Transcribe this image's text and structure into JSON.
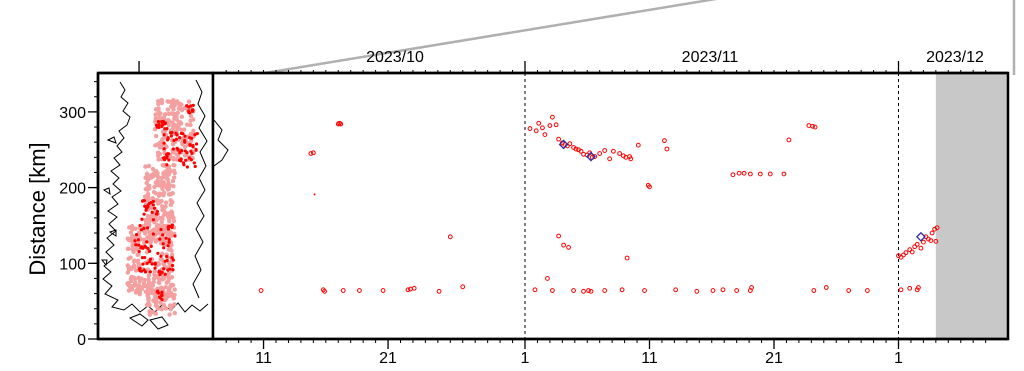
{
  "chart_data": {
    "type": "scatter",
    "title": "",
    "ylabel": "Distance [km]",
    "xlabel": "",
    "x_axis": {
      "type": "date",
      "range": [
        "2023-10-08",
        "2023-12-08"
      ],
      "month_labels": [
        {
          "label": "2023/10",
          "date": "2023-10-01"
        },
        {
          "label": "2023/11",
          "date": "2023-11-01"
        },
        {
          "label": "2023/12",
          "date": "2023-12-01"
        }
      ],
      "day_ticks": [
        {
          "label": "11",
          "date": "2023-10-11"
        },
        {
          "label": "21",
          "date": "2023-10-21"
        },
        {
          "label": "1",
          "date": "2023-11-01"
        },
        {
          "label": "11",
          "date": "2023-11-11"
        },
        {
          "label": "21",
          "date": "2023-11-21"
        },
        {
          "label": "1",
          "date": "2023-12-01"
        }
      ],
      "month_boundaries": [
        "2023-11-01",
        "2023-12-01"
      ]
    },
    "y_axis": {
      "range": [
        0,
        350
      ],
      "ticks": [
        {
          "label": "0",
          "value": 0
        },
        {
          "label": "100",
          "value": 100
        },
        {
          "label": "200",
          "value": 200
        },
        {
          "label": "300",
          "value": 300
        }
      ]
    },
    "no_data_shading": {
      "from": "2023-12-04",
      "to": "2023-12-08",
      "color": "#c8c8c8"
    },
    "colors": {
      "events": "#ff0000",
      "highlight": "#2a2aa8",
      "map_density": "#f4a0a0",
      "shade": "#c8c8c8"
    },
    "series": [
      {
        "marker": "small-open-circle",
        "points": [
          {
            "x": "2023-10-10.8",
            "y": 64
          },
          {
            "x": "2023-10-15.8",
            "y": 65
          },
          {
            "x": "2023-10-15.9",
            "y": 63
          },
          {
            "x": "2023-10-17.4",
            "y": 64
          },
          {
            "x": "2023-10-18.7",
            "y": 64
          },
          {
            "x": "2023-10-20.6",
            "y": 64
          },
          {
            "x": "2023-10-22.6",
            "y": 65
          },
          {
            "x": "2023-10-22.8",
            "y": 66
          },
          {
            "x": "2023-10-23.1",
            "y": 67
          },
          {
            "x": "2023-10-25.1",
            "y": 63
          },
          {
            "x": "2023-10-27.0",
            "y": 69
          },
          {
            "x": "2023-11-01.8",
            "y": 65
          },
          {
            "x": "2023-11-03.2",
            "y": 64
          },
          {
            "x": "2023-11-04.9",
            "y": 64
          },
          {
            "x": "2023-11-05.7",
            "y": 63
          },
          {
            "x": "2023-11-06.1",
            "y": 64
          },
          {
            "x": "2023-11-06.3",
            "y": 63
          },
          {
            "x": "2023-11-07.4",
            "y": 64
          },
          {
            "x": "2023-11-08.8",
            "y": 65
          },
          {
            "x": "2023-11-10.6",
            "y": 64
          },
          {
            "x": "2023-11-13.1",
            "y": 65
          },
          {
            "x": "2023-11-14.8",
            "y": 63
          },
          {
            "x": "2023-11-16.1",
            "y": 64
          },
          {
            "x": "2023-11-16.9",
            "y": 65
          },
          {
            "x": "2023-11-18.0",
            "y": 64
          },
          {
            "x": "2023-11-19.1",
            "y": 64
          },
          {
            "x": "2023-11-19.2",
            "y": 68
          },
          {
            "x": "2023-11-24.2",
            "y": 64
          },
          {
            "x": "2023-11-25.2",
            "y": 68
          },
          {
            "x": "2023-11-27.0",
            "y": 64
          },
          {
            "x": "2023-11-28.5",
            "y": 64
          },
          {
            "x": "2023-12-01.2",
            "y": 65
          },
          {
            "x": "2023-12-01.9",
            "y": 67
          },
          {
            "x": "2023-12-02.5",
            "y": 65
          },
          {
            "x": "2023-12-02.6",
            "y": 68
          },
          {
            "x": "2023-10-17.0",
            "y": 284
          },
          {
            "x": "2023-10-17.1",
            "y": 285
          },
          {
            "x": "2023-10-17.2",
            "y": 284
          },
          {
            "x": "2023-10-14.8",
            "y": 245
          },
          {
            "x": "2023-10-15.0",
            "y": 246
          },
          {
            "x": "2023-10-26.0",
            "y": 135
          },
          {
            "x": "2023-11-01.4",
            "y": 278
          },
          {
            "x": "2023-11-01.9",
            "y": 275
          },
          {
            "x": "2023-11-02.1",
            "y": 285
          },
          {
            "x": "2023-11-02.4",
            "y": 279
          },
          {
            "x": "2023-11-02.6",
            "y": 270
          },
          {
            "x": "2023-11-03.0",
            "y": 282
          },
          {
            "x": "2023-11-03.2",
            "y": 293
          },
          {
            "x": "2023-11-03.5",
            "y": 283
          },
          {
            "x": "2023-11-03.7",
            "y": 264
          },
          {
            "x": "2023-11-04.0",
            "y": 259
          },
          {
            "x": "2023-11-04.2",
            "y": 257
          },
          {
            "x": "2023-11-04.4",
            "y": 255
          },
          {
            "x": "2023-11-04.6",
            "y": 258
          },
          {
            "x": "2023-11-04.9",
            "y": 253
          },
          {
            "x": "2023-11-05.1",
            "y": 251
          },
          {
            "x": "2023-11-05.3",
            "y": 250
          },
          {
            "x": "2023-11-05.5",
            "y": 248
          },
          {
            "x": "2023-11-05.7",
            "y": 244
          },
          {
            "x": "2023-11-06.0",
            "y": 243
          },
          {
            "x": "2023-11-06.2",
            "y": 246
          },
          {
            "x": "2023-11-06.4",
            "y": 240
          },
          {
            "x": "2023-11-06.6",
            "y": 241
          },
          {
            "x": "2023-11-07.0",
            "y": 245
          },
          {
            "x": "2023-11-07.4",
            "y": 249
          },
          {
            "x": "2023-11-07.8",
            "y": 238
          },
          {
            "x": "2023-11-08.1",
            "y": 248
          },
          {
            "x": "2023-11-08.6",
            "y": 245
          },
          {
            "x": "2023-11-08.9",
            "y": 242
          },
          {
            "x": "2023-11-09.1",
            "y": 240
          },
          {
            "x": "2023-11-09.4",
            "y": 241
          },
          {
            "x": "2023-11-10.1",
            "y": 256
          },
          {
            "x": "2023-11-09.5",
            "y": 238
          },
          {
            "x": "2023-11-10.9",
            "y": 203
          },
          {
            "x": "2023-11-11.0",
            "y": 201
          },
          {
            "x": "2023-11-12.2",
            "y": 262
          },
          {
            "x": "2023-11-12.4",
            "y": 251
          },
          {
            "x": "2023-11-09.2",
            "y": 107
          },
          {
            "x": "2023-11-03.7",
            "y": 136
          },
          {
            "x": "2023-11-04.1",
            "y": 124
          },
          {
            "x": "2023-11-04.5",
            "y": 121
          },
          {
            "x": "2023-11-02.8",
            "y": 80
          },
          {
            "x": "2023-11-17.7",
            "y": 217
          },
          {
            "x": "2023-11-18.2",
            "y": 219
          },
          {
            "x": "2023-11-18.6",
            "y": 219
          },
          {
            "x": "2023-11-19.1",
            "y": 218
          },
          {
            "x": "2023-11-19.9",
            "y": 218
          },
          {
            "x": "2023-11-20.7",
            "y": 218
          },
          {
            "x": "2023-11-21.8",
            "y": 218
          },
          {
            "x": "2023-11-22.2",
            "y": 263
          },
          {
            "x": "2023-11-23.8",
            "y": 282
          },
          {
            "x": "2023-11-24.1",
            "y": 281
          },
          {
            "x": "2023-11-24.3",
            "y": 280
          },
          {
            "x": "2023-12-01.0",
            "y": 110
          },
          {
            "x": "2023-12-01.2",
            "y": 108
          },
          {
            "x": "2023-12-01.4",
            "y": 111
          },
          {
            "x": "2023-12-01.6",
            "y": 114
          },
          {
            "x": "2023-12-01.9",
            "y": 118
          },
          {
            "x": "2023-12-02.1",
            "y": 115
          },
          {
            "x": "2023-12-02.3",
            "y": 122
          },
          {
            "x": "2023-12-02.5",
            "y": 125
          },
          {
            "x": "2023-12-02.8",
            "y": 120
          },
          {
            "x": "2023-12-03.0",
            "y": 128
          },
          {
            "x": "2023-12-03.2",
            "y": 135
          },
          {
            "x": "2023-12-03.4",
            "y": 132
          },
          {
            "x": "2023-12-03.7",
            "y": 140
          },
          {
            "x": "2023-12-03.9",
            "y": 145
          },
          {
            "x": "2023-12-04.1",
            "y": 147
          },
          {
            "x": "2023-12-04.0",
            "y": 129
          },
          {
            "x": "2023-12-03.6",
            "y": 130
          }
        ]
      },
      {
        "marker": "dot",
        "points": [
          {
            "x": "2023-10-15.1",
            "y": 191
          }
        ]
      },
      {
        "marker": "blue-diamond",
        "points": [
          {
            "x": "2023-11-04.1",
            "y": 257
          },
          {
            "x": "2023-11-06.3",
            "y": 241
          },
          {
            "x": "2023-12-02.8",
            "y": 135
          }
        ]
      }
    ]
  }
}
